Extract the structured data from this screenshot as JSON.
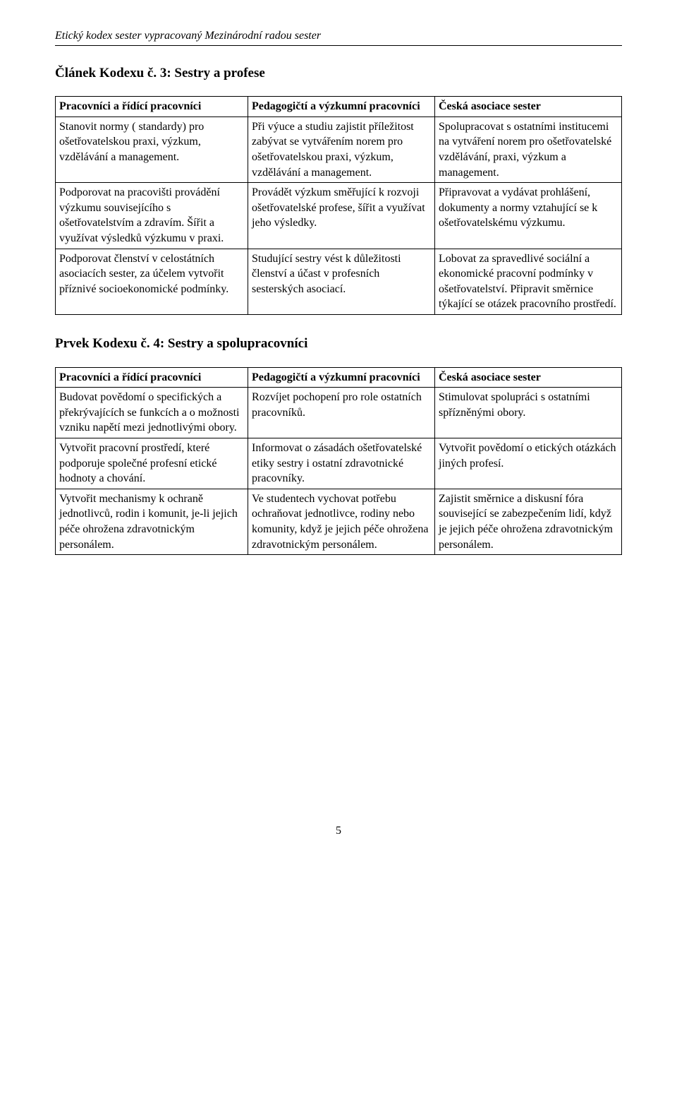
{
  "doc_title": "Etický kodex sester vypracovaný Mezinárodní radou sester",
  "section3": {
    "title": "Článek Kodexu č. 3: Sestry a profese",
    "headers": [
      "Pracovníci a řídící pracovníci",
      "Pedagogičtí a výzkumní pracovníci",
      "Česká asociace sester"
    ],
    "rows": [
      [
        "Stanovit normy ( standardy) pro ošetřovatelskou praxi, výzkum, vzdělávání a management.",
        "Při výuce a studiu zajistit příležitost zabývat se vytvářením norem pro ošetřovatelskou praxi, výzkum, vzdělávání a management.",
        "Spolupracovat s ostatními institucemi na vytváření norem pro ošetřovatelské vzdělávání, praxi, výzkum a management."
      ],
      [
        "Podporovat na pracovišti provádění výzkumu souvisejícího s ošetřovatelstvím a zdravím. Šířit a využívat výsledků výzkumu v praxi.",
        "Provádět výzkum směřující k rozvoji ošetřovatelské profese, šířit a využívat jeho výsledky.",
        "Připravovat  a vydávat prohlášení, dokumenty a normy vztahující se k ošetřovatelskému výzkumu."
      ],
      [
        "Podporovat členství v celostátních asociacích sester, za účelem vytvořit příznivé socioekonomické podmínky.",
        "Studující sestry vést k důležitosti členství a účast v profesních sesterských asociací.",
        "Lobovat za spravedlivé sociální a ekonomické pracovní podmínky v ošetřovatelství. Připravit směrnice týkající se otázek pracovního prostředí."
      ]
    ]
  },
  "section4": {
    "title": "Prvek Kodexu č. 4: Sestry a spolupracovníci",
    "headers": [
      "Pracovníci a řídící pracovníci",
      "Pedagogičtí a výzkumní pracovníci",
      "Česká asociace sester"
    ],
    "rows": [
      [
        "Budovat povědomí o specifických a překrývajících se funkcích a o možnosti vzniku napětí mezi jednotlivými obory.",
        "Rozvíjet pochopení pro role ostatních pracovníků.",
        "Stimulovat spolupráci  s ostatními spřízněnými obory."
      ],
      [
        "Vytvořit pracovní prostředí, které podporuje společné profesní etické hodnoty a chování.",
        "Informovat o zásadách ošetřovatelské etiky sestry i ostatní zdravotnické pracovníky.",
        "Vytvořit povědomí o etických otázkách jiných profesí."
      ],
      [
        "Vytvořit mechanismy k ochraně jednotlivců, rodin i komunit, je-li jejich péče ohrožena zdravotnickým personálem.",
        "Ve studentech vychovat potřebu ochraňovat jednotlivce, rodiny nebo komunity, když je jejich péče ohrožena zdravotnickým personálem.",
        "Zajistit směrnice a diskusní fóra související se zabezpečením lidí, když je jejich péče ohrožena zdravotnickým personálem."
      ]
    ]
  },
  "page_number": "5"
}
